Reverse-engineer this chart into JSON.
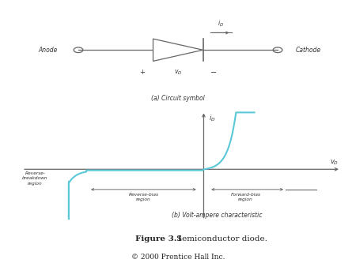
{
  "background_color": "#ffffff",
  "title_bold": "Figure 3.1",
  "title_normal": "  Semiconductor diode.",
  "copyright": "© 2000 Prentice Hall Inc.",
  "caption_a": "(a) Circuit symbol",
  "caption_b": "(b) Volt-ampere characteristic",
  "curve_color": "#5bc8d8",
  "axis_color": "#666666",
  "text_color": "#333333",
  "text_color_dark": "#222222"
}
